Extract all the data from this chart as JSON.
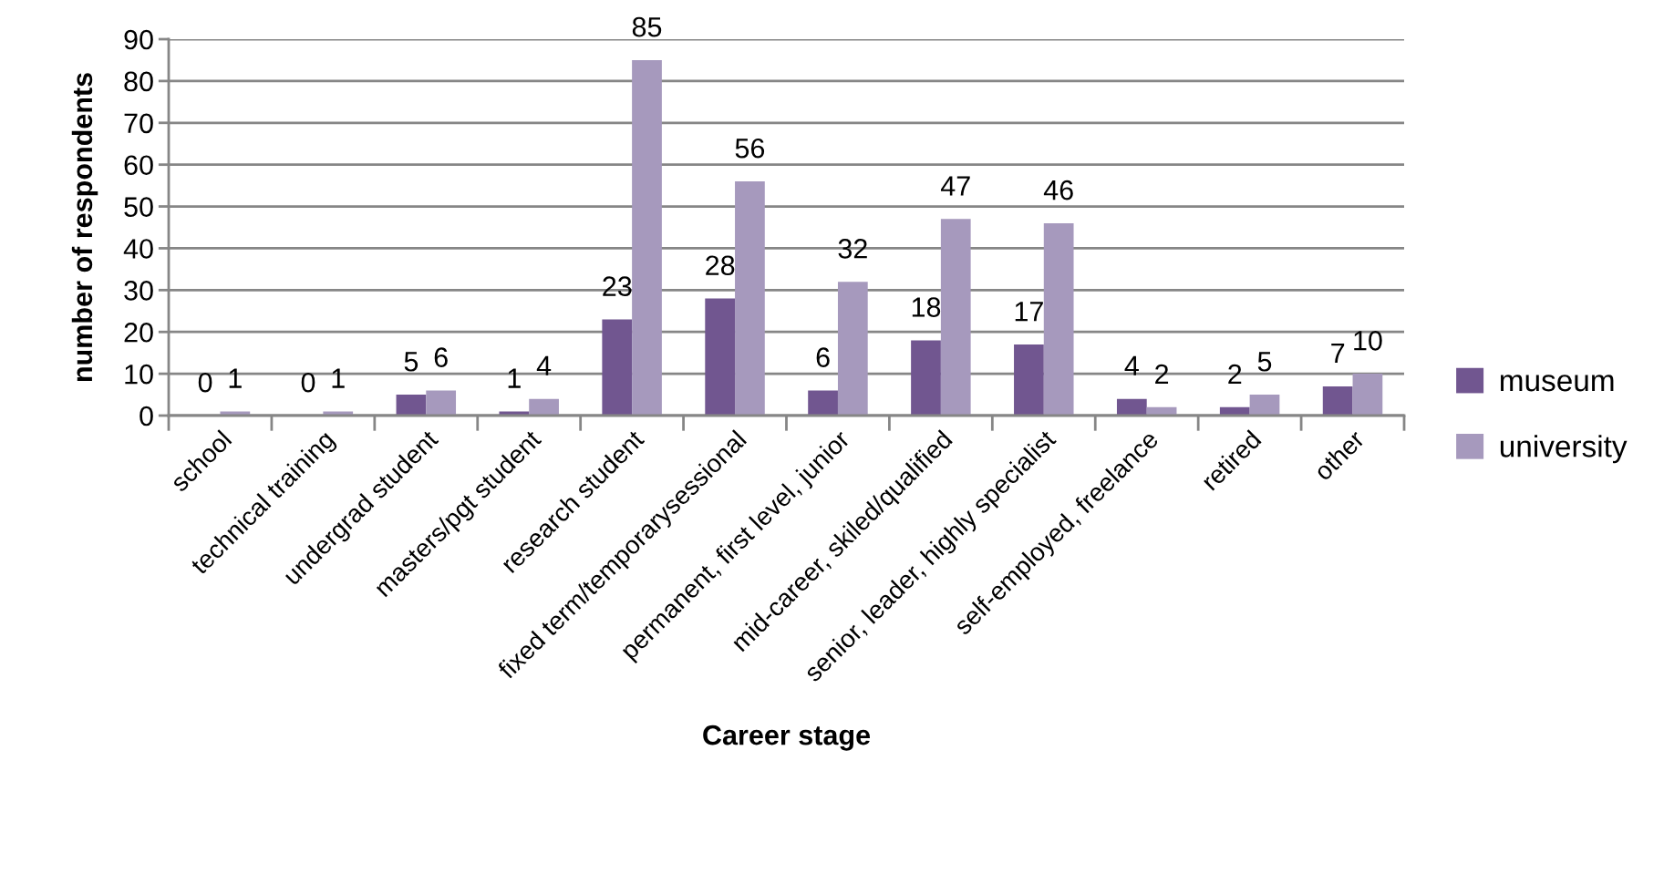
{
  "chart_data": {
    "type": "bar",
    "xlabel": "Career stage",
    "ylabel": "number of respondents",
    "categories": [
      "school",
      "technical training",
      "undergrad student",
      "masters/pgt student",
      "research student",
      "fixed term/temporarysessional",
      "permanent, first level, junior",
      "mid-career, skiled/qualified",
      "senior, leader, highly specialist",
      "self-employed, freelance",
      "retired",
      "other"
    ],
    "series": [
      {
        "name": "museum",
        "color": "#715690",
        "values": [
          0,
          0,
          5,
          1,
          23,
          28,
          6,
          18,
          17,
          4,
          2,
          7
        ]
      },
      {
        "name": "university",
        "color": "#a699bd",
        "values": [
          1,
          1,
          6,
          4,
          85,
          56,
          32,
          47,
          46,
          2,
          5,
          10
        ]
      }
    ],
    "ylim": [
      0,
      90
    ],
    "yticks": [
      0,
      10,
      20,
      30,
      40,
      50,
      60,
      70,
      80,
      90
    ],
    "grid": "y",
    "legend": "right",
    "data_labels": true
  }
}
